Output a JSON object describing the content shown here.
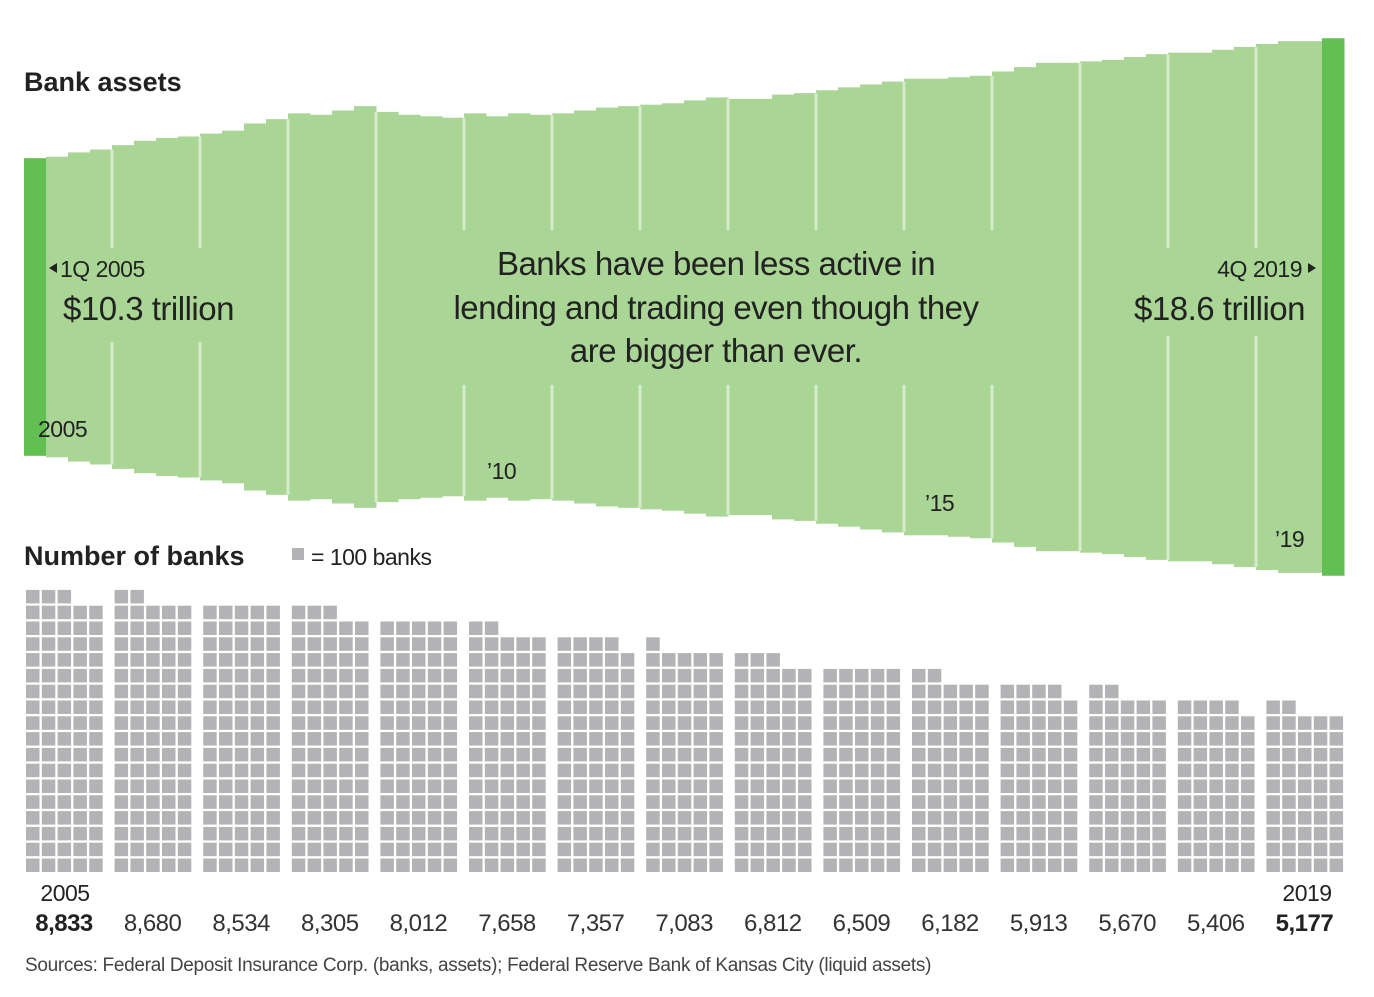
{
  "colors": {
    "bar": "#a9d595",
    "endpoint": "#62bf52",
    "year_line": "#d6ebcc",
    "square": "#b3b3b5",
    "text": "#222222"
  },
  "chart_data": [
    {
      "type": "bar",
      "title": "Bank assets",
      "unit": "trillion dollars",
      "x": [
        "1Q 2005",
        "2Q 2005",
        "3Q 2005",
        "4Q 2005",
        "1Q 2006",
        "2Q 2006",
        "3Q 2006",
        "4Q 2006",
        "1Q 2007",
        "2Q 2007",
        "3Q 2007",
        "4Q 2007",
        "1Q 2008",
        "2Q 2008",
        "3Q 2008",
        "4Q 2008",
        "1Q 2009",
        "2Q 2009",
        "3Q 2009",
        "4Q 2009",
        "1Q 2010",
        "2Q 2010",
        "3Q 2010",
        "4Q 2010",
        "1Q 2011",
        "2Q 2011",
        "3Q 2011",
        "4Q 2011",
        "1Q 2012",
        "2Q 2012",
        "3Q 2012",
        "4Q 2012",
        "1Q 2013",
        "2Q 2013",
        "3Q 2013",
        "4Q 2013",
        "1Q 2014",
        "2Q 2014",
        "3Q 2014",
        "4Q 2014",
        "1Q 2015",
        "2Q 2015",
        "3Q 2015",
        "4Q 2015",
        "1Q 2016",
        "2Q 2016",
        "3Q 2016",
        "4Q 2016",
        "1Q 2017",
        "2Q 2017",
        "3Q 2017",
        "4Q 2017",
        "1Q 2018",
        "2Q 2018",
        "3Q 2018",
        "4Q 2018",
        "1Q 2019",
        "2Q 2019",
        "3Q 2019",
        "4Q 2019"
      ],
      "values": [
        10.3,
        10.4,
        10.7,
        10.9,
        11.2,
        11.5,
        11.7,
        11.8,
        12.0,
        12.2,
        12.7,
        13.0,
        13.4,
        13.3,
        13.6,
        13.9,
        13.5,
        13.3,
        13.2,
        13.1,
        13.4,
        13.2,
        13.4,
        13.3,
        13.4,
        13.6,
        13.8,
        13.9,
        14.0,
        14.1,
        14.3,
        14.5,
        14.4,
        14.4,
        14.7,
        14.8,
        15.0,
        15.2,
        15.4,
        15.6,
        15.8,
        15.8,
        15.9,
        16.0,
        16.3,
        16.6,
        16.9,
        16.9,
        17.0,
        17.1,
        17.3,
        17.5,
        17.6,
        17.6,
        17.8,
        18.0,
        18.2,
        18.4,
        18.4,
        18.6
      ],
      "tick_labels": [
        {
          "label": "2005",
          "quarter": "1Q 2005"
        },
        {
          "label": "’10",
          "quarter": "1Q 2010"
        },
        {
          "label": "’15",
          "quarter": "1Q 2015"
        },
        {
          "label": "’19",
          "quarter": "1Q 2019"
        }
      ],
      "annotations": {
        "start_period": "1Q 2005",
        "start_value": "$10.3 trillion",
        "end_period": "4Q 2019",
        "end_value": "$18.6 trillion",
        "center_lines": [
          "Banks have been less active in",
          "lending and trading even though they",
          "are bigger than ever."
        ]
      },
      "grid": false
    },
    {
      "type": "waffle",
      "title": "Number of banks",
      "legend": "= 100 banks",
      "unit_per_square": 100,
      "categories": [
        "2005",
        "2006",
        "2007",
        "2008",
        "2009",
        "2010",
        "2011",
        "2012",
        "2013",
        "2014",
        "2015",
        "2016",
        "2017",
        "2018",
        "2019"
      ],
      "values": [
        8833,
        8680,
        8534,
        8305,
        8012,
        7658,
        7357,
        7083,
        6812,
        6509,
        6182,
        5913,
        5670,
        5406,
        5177
      ],
      "value_labels": [
        "8,833",
        "8,680",
        "8,534",
        "8,305",
        "8,012",
        "7,658",
        "7,357",
        "7,083",
        "6,812",
        "6,509",
        "6,182",
        "5,913",
        "5,670",
        "5,406",
        "5,177"
      ],
      "first_label": "2005",
      "last_label": "2019"
    }
  ],
  "source": "Sources: Federal Deposit Insurance Corp. (banks, assets); Federal Reserve Bank of Kansas City (liquid assets)"
}
